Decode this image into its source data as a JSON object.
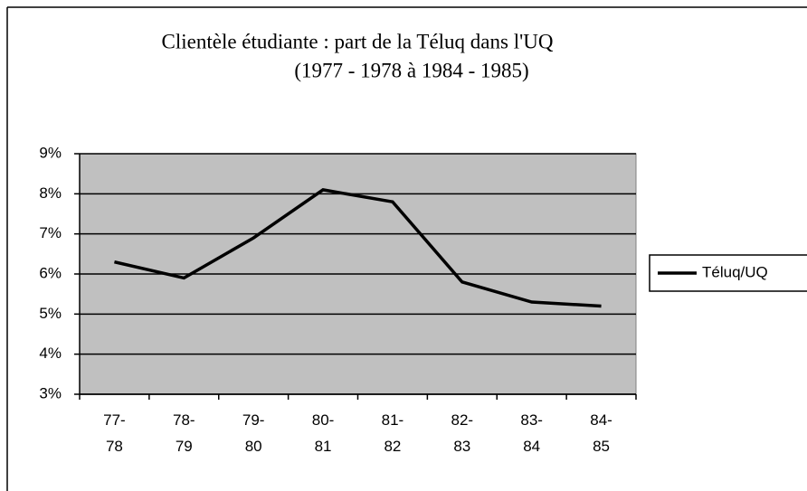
{
  "chart_data": {
    "type": "line",
    "title": "Clientèle étudiante : part de la Téluq dans l'UQ",
    "subtitle": "(1977 - 1978 à 1984 - 1985)",
    "categories": [
      "77-78",
      "78-79",
      "79-80",
      "80-81",
      "81-82",
      "82-83",
      "83-84",
      "84-85"
    ],
    "series": [
      {
        "name": "Téluq/UQ",
        "color": "#000000",
        "values": [
          6.3,
          5.9,
          6.9,
          8.1,
          7.8,
          5.8,
          5.3,
          5.2
        ]
      }
    ],
    "ylim": [
      3,
      9
    ],
    "yticks": [
      {
        "value": 3,
        "label": "3%"
      },
      {
        "value": 4,
        "label": "4%"
      },
      {
        "value": 5,
        "label": "5%"
      },
      {
        "value": 6,
        "label": "6%"
      },
      {
        "value": 7,
        "label": "7%"
      },
      {
        "value": 8,
        "label": "8%"
      },
      {
        "value": 9,
        "label": "9%"
      }
    ],
    "grid": true,
    "plot_background": "#c0c0c0",
    "legend": "right"
  }
}
